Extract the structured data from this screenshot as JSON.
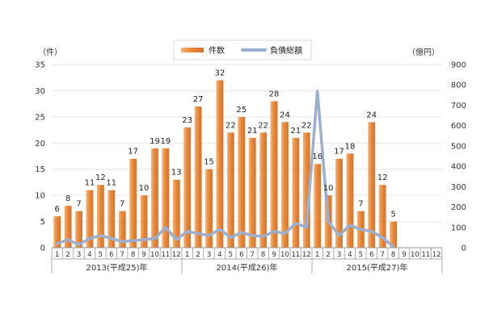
{
  "chart_data": {
    "type": "bar",
    "title": "",
    "legend_position": "top-center",
    "left_axis": {
      "unit_label": "（件）",
      "ylim": [
        0,
        35
      ],
      "ticks": [
        "0",
        "5",
        "10",
        "15",
        "20",
        "25",
        "30",
        "35"
      ]
    },
    "right_axis": {
      "unit_label": "（億円）",
      "ylim": [
        0,
        900
      ],
      "ticks": [
        "0",
        "100",
        "200",
        "300",
        "400",
        "500",
        "600",
        "700",
        "800",
        "900"
      ]
    },
    "months": [
      "1",
      "2",
      "3",
      "4",
      "5",
      "6",
      "7",
      "8",
      "9",
      "10",
      "11",
      "12",
      "1",
      "2",
      "3",
      "4",
      "5",
      "6",
      "7",
      "8",
      "9",
      "10",
      "11",
      "12",
      "1",
      "2",
      "3",
      "4",
      "5",
      "6",
      "7",
      "8",
      "9",
      "10",
      "11",
      "12"
    ],
    "year_labels": [
      "2013(平成25)年",
      "2014(平成26)年",
      "2015(平成27)年"
    ],
    "series": [
      {
        "name": "件数",
        "axis": "left",
        "type": "bar",
        "color": "#E8893A",
        "values": [
          6,
          8,
          7,
          11,
          12,
          11,
          7,
          17,
          10,
          19,
          19,
          13,
          23,
          27,
          15,
          32,
          22,
          25,
          21,
          22,
          28,
          24,
          21,
          22,
          16,
          10,
          17,
          18,
          7,
          24,
          12,
          5,
          null,
          null,
          null,
          null
        ]
      },
      {
        "name": "負債総額",
        "axis": "right",
        "type": "line",
        "color": "#9BB0D0",
        "values": [
          20,
          40,
          15,
          45,
          60,
          45,
          30,
          35,
          40,
          45,
          100,
          40,
          80,
          70,
          60,
          90,
          50,
          75,
          60,
          55,
          80,
          70,
          120,
          100,
          770,
          130,
          60,
          110,
          90,
          80,
          50,
          5,
          null,
          null,
          null,
          null
        ]
      }
    ]
  }
}
